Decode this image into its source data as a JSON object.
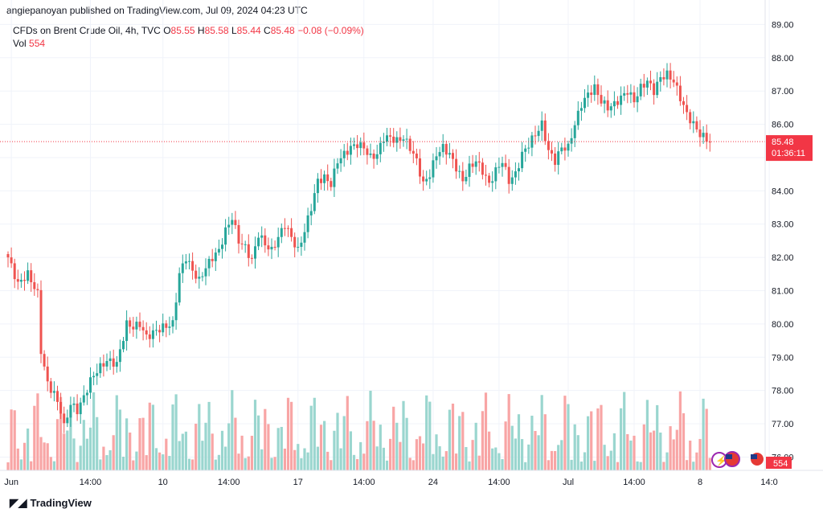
{
  "header": {
    "publisher": "angiepanoyan published on TradingView.com, Jul 09, 2024 04:23 UTC"
  },
  "legend": {
    "symbol": "CFDs on Brent Crude Oil, 4h, TVC",
    "o_label": "O",
    "o": "85.55",
    "h_label": "H",
    "h": "85.58",
    "l_label": "L",
    "l": "85.44",
    "c_label": "C",
    "c": "85.48",
    "change": "−0.08 (−0.09%)",
    "vol_label": "Vol",
    "vol": "554"
  },
  "price_tag": {
    "price": "85.48",
    "countdown": "01:36:11"
  },
  "vol_tag": "554",
  "footer": {
    "brand": "TradingView"
  },
  "colors": {
    "up": "#26a69a",
    "down": "#ef5350",
    "vol_up": "#9ad6cf",
    "vol_down": "#f8a5a5",
    "grid": "#f0f3fa",
    "tag": "#f23645"
  },
  "chart_data": {
    "type": "candlestick",
    "ylim": [
      75.6,
      89.3
    ],
    "y_ticks": [
      "89.00",
      "88.00",
      "87.00",
      "86.00",
      "85.00",
      "84.00",
      "83.00",
      "82.00",
      "81.00",
      "80.00",
      "79.00",
      "78.00",
      "77.00",
      "76.00"
    ],
    "x_tick_labels": [
      {
        "label": "Jun",
        "index": 1
      },
      {
        "label": "14:00",
        "index": 25
      },
      {
        "label": "10",
        "index": 47
      },
      {
        "label": "14:00",
        "index": 67
      },
      {
        "label": "17",
        "index": 88
      },
      {
        "label": "14:00",
        "index": 108
      },
      {
        "label": "24",
        "index": 129
      },
      {
        "label": "14:00",
        "index": 149
      },
      {
        "label": "Jul",
        "index": 170
      },
      {
        "label": "14:00",
        "index": 190
      },
      {
        "label": "8",
        "index": 210
      },
      {
        "label": "14:0",
        "index": 231
      }
    ],
    "ohlc_anchors": [
      [
        0,
        82.0
      ],
      [
        3,
        81.2
      ],
      [
        6,
        81.5
      ],
      [
        9,
        80.9
      ],
      [
        10,
        79.2
      ],
      [
        12,
        78.2
      ],
      [
        14,
        77.9
      ],
      [
        16,
        77.4
      ],
      [
        17,
        76.9
      ],
      [
        19,
        77.6
      ],
      [
        21,
        77.4
      ],
      [
        23,
        77.8
      ],
      [
        25,
        78.3
      ],
      [
        27,
        78.6
      ],
      [
        30,
        78.9
      ],
      [
        33,
        78.8
      ],
      [
        36,
        80.0
      ],
      [
        38,
        79.9
      ],
      [
        40,
        80.0
      ],
      [
        42,
        79.6
      ],
      [
        45,
        79.8
      ],
      [
        47,
        79.9
      ],
      [
        50,
        80.0
      ],
      [
        52,
        81.5
      ],
      [
        54,
        82.0
      ],
      [
        56,
        81.6
      ],
      [
        58,
        81.3
      ],
      [
        60,
        81.7
      ],
      [
        62,
        82.0
      ],
      [
        64,
        82.2
      ],
      [
        66,
        82.8
      ],
      [
        68,
        83.2
      ],
      [
        70,
        82.5
      ],
      [
        72,
        82.3
      ],
      [
        74,
        81.9
      ],
      [
        76,
        82.7
      ],
      [
        78,
        82.4
      ],
      [
        80,
        82.2
      ],
      [
        82,
        82.6
      ],
      [
        84,
        83.0
      ],
      [
        86,
        82.6
      ],
      [
        88,
        82.2
      ],
      [
        90,
        82.8
      ],
      [
        92,
        83.5
      ],
      [
        94,
        84.3
      ],
      [
        96,
        84.4
      ],
      [
        98,
        84.2
      ],
      [
        100,
        84.9
      ],
      [
        102,
        85.1
      ],
      [
        104,
        85.3
      ],
      [
        106,
        85.4
      ],
      [
        108,
        85.3
      ],
      [
        110,
        85.0
      ],
      [
        112,
        85.1
      ],
      [
        114,
        85.6
      ],
      [
        116,
        85.6
      ],
      [
        118,
        85.5
      ],
      [
        120,
        85.6
      ],
      [
        122,
        85.3
      ],
      [
        124,
        84.9
      ],
      [
        126,
        84.2
      ],
      [
        128,
        84.5
      ],
      [
        130,
        85.1
      ],
      [
        132,
        85.3
      ],
      [
        134,
        85.1
      ],
      [
        136,
        84.7
      ],
      [
        138,
        84.3
      ],
      [
        140,
        84.7
      ],
      [
        142,
        84.9
      ],
      [
        144,
        84.6
      ],
      [
        146,
        84.2
      ],
      [
        148,
        84.6
      ],
      [
        150,
        84.9
      ],
      [
        152,
        84.3
      ],
      [
        154,
        84.5
      ],
      [
        156,
        85.1
      ],
      [
        158,
        85.4
      ],
      [
        160,
        85.7
      ],
      [
        162,
        86.0
      ],
      [
        164,
        85.2
      ],
      [
        166,
        84.9
      ],
      [
        168,
        85.3
      ],
      [
        170,
        85.3
      ],
      [
        172,
        86.0
      ],
      [
        174,
        86.6
      ],
      [
        176,
        86.9
      ],
      [
        178,
        87.1
      ],
      [
        180,
        86.7
      ],
      [
        182,
        86.5
      ],
      [
        184,
        86.6
      ],
      [
        186,
        86.8
      ],
      [
        188,
        87.0
      ],
      [
        190,
        86.7
      ],
      [
        192,
        87.1
      ],
      [
        194,
        87.3
      ],
      [
        196,
        87.0
      ],
      [
        198,
        87.4
      ],
      [
        200,
        87.5
      ],
      [
        202,
        87.3
      ],
      [
        204,
        86.8
      ],
      [
        206,
        86.3
      ],
      [
        208,
        86.0
      ],
      [
        210,
        85.7
      ],
      [
        212,
        85.55
      ],
      [
        213,
        85.48
      ]
    ]
  }
}
